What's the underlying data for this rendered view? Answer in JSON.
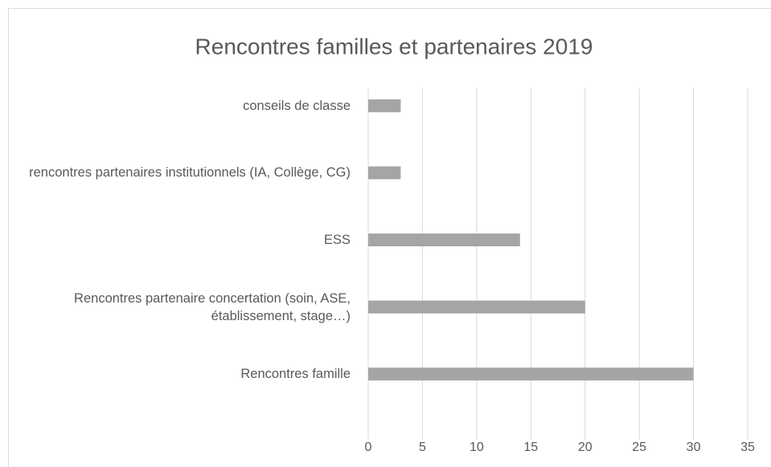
{
  "chart_data": {
    "type": "bar",
    "orientation": "horizontal",
    "title": "Rencontres familles et partenaires 2019",
    "categories": [
      "conseils de classe",
      "rencontres partenaires institutionnels (IA, Collège, CG)",
      "ESS",
      "Rencontres partenaire concertation (soin, ASE, établissement, stage…)",
      "Rencontres famille"
    ],
    "values": [
      3,
      3,
      14,
      20,
      30
    ],
    "color": "#a5a5a5",
    "xlim": [
      0,
      35
    ],
    "xticks": [
      0,
      5,
      10,
      15,
      20,
      25,
      30,
      35
    ],
    "grid": true
  }
}
